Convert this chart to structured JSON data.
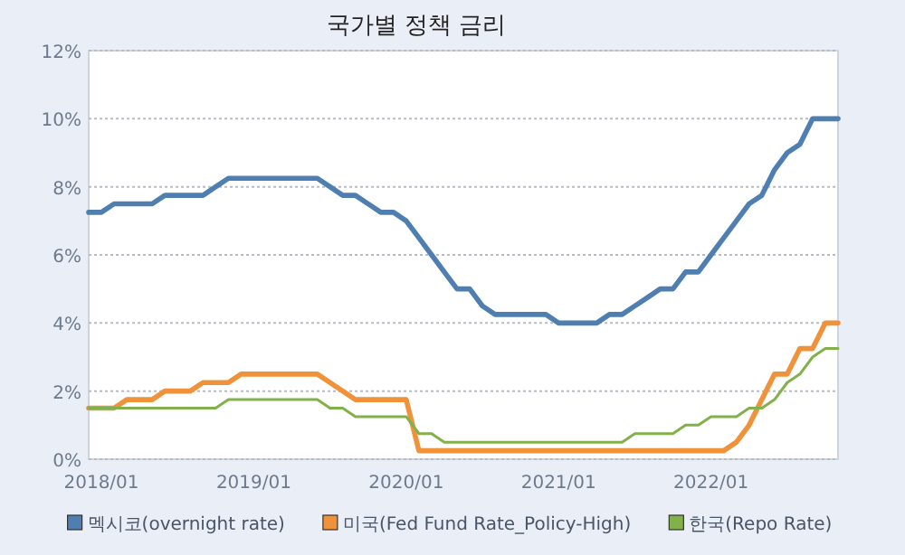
{
  "chart_data": {
    "type": "line",
    "title": "국가별 정책 금리",
    "x": [
      "2017-12",
      "2018-01",
      "2018-02",
      "2018-03",
      "2018-04",
      "2018-05",
      "2018-06",
      "2018-07",
      "2018-08",
      "2018-09",
      "2018-10",
      "2018-11",
      "2018-12",
      "2019-01",
      "2019-02",
      "2019-03",
      "2019-04",
      "2019-05",
      "2019-06",
      "2019-07",
      "2019-08",
      "2019-09",
      "2019-10",
      "2019-11",
      "2019-12",
      "2020-01",
      "2020-02",
      "2020-03",
      "2020-04",
      "2020-05",
      "2020-06",
      "2020-07",
      "2020-08",
      "2020-09",
      "2020-10",
      "2020-11",
      "2020-12",
      "2021-01",
      "2021-02",
      "2021-03",
      "2021-04",
      "2021-05",
      "2021-06",
      "2021-07",
      "2021-08",
      "2021-09",
      "2021-10",
      "2021-11",
      "2021-12",
      "2022-01",
      "2022-02",
      "2022-03",
      "2022-04",
      "2022-05",
      "2022-06",
      "2022-07",
      "2022-08",
      "2022-09",
      "2022-10",
      "2022-11"
    ],
    "series": [
      {
        "name": "멕시코(overnight rate)",
        "color": "#4f7fb0",
        "values": [
          7.25,
          7.25,
          7.5,
          7.5,
          7.5,
          7.5,
          7.75,
          7.75,
          7.75,
          7.75,
          8.0,
          8.25,
          8.25,
          8.25,
          8.25,
          8.25,
          8.25,
          8.25,
          8.25,
          8.0,
          7.75,
          7.75,
          7.5,
          7.25,
          7.25,
          7.0,
          6.5,
          6.0,
          5.5,
          5.0,
          5.0,
          4.5,
          4.25,
          4.25,
          4.25,
          4.25,
          4.25,
          4.0,
          4.0,
          4.0,
          4.0,
          4.25,
          4.25,
          4.5,
          4.75,
          5.0,
          5.0,
          5.5,
          5.5,
          6.0,
          6.5,
          7.0,
          7.5,
          7.75,
          8.5,
          9.0,
          9.25,
          10.0,
          10.0,
          10.0
        ]
      },
      {
        "name": "미국(Fed Fund Rate_Policy-High)",
        "color": "#f0923a",
        "values": [
          1.5,
          1.5,
          1.5,
          1.75,
          1.75,
          1.75,
          2.0,
          2.0,
          2.0,
          2.25,
          2.25,
          2.25,
          2.5,
          2.5,
          2.5,
          2.5,
          2.5,
          2.5,
          2.5,
          2.25,
          2.0,
          1.75,
          1.75,
          1.75,
          1.75,
          1.75,
          0.25,
          0.25,
          0.25,
          0.25,
          0.25,
          0.25,
          0.25,
          0.25,
          0.25,
          0.25,
          0.25,
          0.25,
          0.25,
          0.25,
          0.25,
          0.25,
          0.25,
          0.25,
          0.25,
          0.25,
          0.25,
          0.25,
          0.25,
          0.25,
          0.25,
          0.5,
          1.0,
          1.75,
          2.5,
          2.5,
          3.25,
          3.25,
          4.0,
          4.0
        ]
      },
      {
        "name": "한국(Repo Rate)",
        "color": "#82b04a",
        "values": [
          1.5,
          1.5,
          1.5,
          1.5,
          1.5,
          1.5,
          1.5,
          1.5,
          1.5,
          1.5,
          1.5,
          1.75,
          1.75,
          1.75,
          1.75,
          1.75,
          1.75,
          1.75,
          1.75,
          1.5,
          1.5,
          1.25,
          1.25,
          1.25,
          1.25,
          1.25,
          0.75,
          0.75,
          0.5,
          0.5,
          0.5,
          0.5,
          0.5,
          0.5,
          0.5,
          0.5,
          0.5,
          0.5,
          0.5,
          0.5,
          0.5,
          0.5,
          0.5,
          0.75,
          0.75,
          0.75,
          0.75,
          1.0,
          1.0,
          1.25,
          1.25,
          1.25,
          1.5,
          1.5,
          1.75,
          2.25,
          2.5,
          3.0,
          3.25,
          3.25
        ]
      }
    ],
    "xlim": [
      "2017-12",
      "2022-11"
    ],
    "xticks": [
      {
        "value": "2018-01",
        "label": "2018/01"
      },
      {
        "value": "2019-01",
        "label": "2019/01"
      },
      {
        "value": "2020-01",
        "label": "2020/01"
      },
      {
        "value": "2021-01",
        "label": "2021/01"
      },
      {
        "value": "2022-01",
        "label": "2022/01"
      }
    ],
    "ylim": [
      0,
      12
    ],
    "yticks": [
      {
        "value": 0,
        "label": "0%"
      },
      {
        "value": 2,
        "label": "2%"
      },
      {
        "value": 4,
        "label": "4%"
      },
      {
        "value": 6,
        "label": "6%"
      },
      {
        "value": 8,
        "label": "8%"
      },
      {
        "value": 10,
        "label": "10%"
      },
      {
        "value": 12,
        "label": "12%"
      }
    ],
    "grid": "y",
    "legend": "bottom",
    "line_style": "solid"
  }
}
